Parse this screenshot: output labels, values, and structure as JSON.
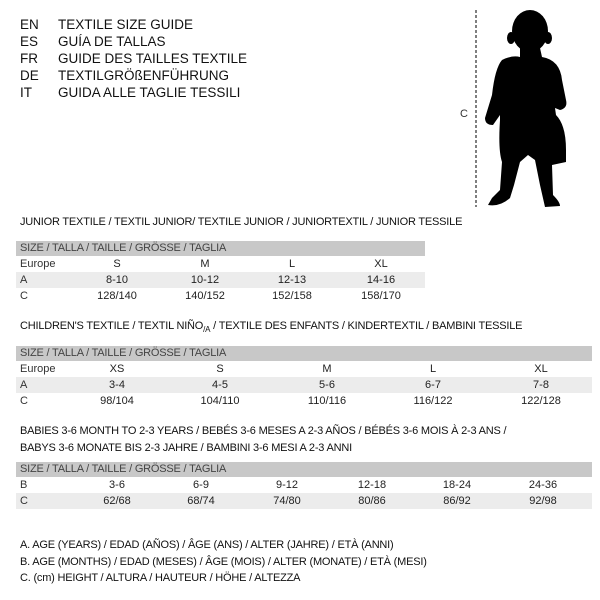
{
  "languages": [
    {
      "code": "EN",
      "text": "TEXTILE SIZE GUIDE"
    },
    {
      "code": "ES",
      "text": "GUÍA DE TALLAS"
    },
    {
      "code": "FR",
      "text": "GUIDE DES TAILLES TEXTILE"
    },
    {
      "code": "DE",
      "text": "TEXTILGRÖßENFÜHRUNG"
    },
    {
      "code": "IT",
      "text": "GUIDA ALLE TAGLIE TESSILI"
    }
  ],
  "figure": {
    "measure_label": "C",
    "icon": "child-silhouette"
  },
  "junior": {
    "title": "JUNIOR TEXTILE / TEXTIL JUNIOR/ TEXTILE JUNIOR / JUNIORTEXTIL / JUNIOR TESSILE",
    "header": "SIZE / TALLA / TAILLE / GRÖSSE / TAGLIA",
    "rows": [
      {
        "label": "Europe",
        "cells": [
          "S",
          "M",
          "L",
          "XL"
        ]
      },
      {
        "label": "A",
        "cells": [
          "8-10",
          "10-12",
          "12-13",
          "14-16"
        ]
      },
      {
        "label": "C",
        "cells": [
          "128/140",
          "140/152",
          "152/158",
          "158/170"
        ]
      }
    ]
  },
  "children": {
    "title_pre": "CHILDREN'S TEXTILE / TEXTIL NIÑO",
    "title_sub": "/A",
    "title_post": " / TEXTILE DES ENFANTS / KINDERTEXTIL / BAMBINI TESSILE",
    "header": "SIZE / TALLA / TAILLE / GRÖSSE / TAGLIA",
    "rows": [
      {
        "label": "Europe",
        "cells": [
          "XS",
          "S",
          "M",
          "L",
          "XL"
        ]
      },
      {
        "label": "A",
        "cells": [
          "3-4",
          "4-5",
          "5-6",
          "6-7",
          "7-8"
        ]
      },
      {
        "label": "C",
        "cells": [
          "98/104",
          "104/110",
          "110/116",
          "116/122",
          "122/128"
        ]
      }
    ]
  },
  "babies": {
    "title_line1": "BABIES 3-6 MONTH TO 2-3 YEARS / BEBÉS 3-6 MESES A 2-3 AÑOS / BÉBÉS 3-6 MOIS À 2-3 ANS /",
    "title_line2": "BABYS 3-6 MONATE BIS 2-3 JAHRE / BAMBINI 3-6 MESI A 2-3 ANNI",
    "header": "SIZE / TALLA / TAILLE / GRÖSSE / TAGLIA",
    "rows": [
      {
        "label": "B",
        "cells": [
          "3-6",
          "6-9",
          "9-12",
          "12-18",
          "18-24",
          "24-36"
        ]
      },
      {
        "label": "C",
        "cells": [
          "62/68",
          "68/74",
          "74/80",
          "80/86",
          "86/92",
          "92/98"
        ]
      }
    ]
  },
  "legend": [
    "A. AGE (YEARS) / EDAD (AÑOS) / ÂGE (ANS) / ALTER (JAHRE) / ETÀ (ANNI)",
    "B. AGE (MONTHS) / EDAD (MESES) / ÂGE (MOIS) / ALTER (MONATE) / ETÀ (MESI)",
    "C. (cm) HEIGHT / ALTURA / HAUTEUR / HÖHE / ALTEZZA"
  ]
}
